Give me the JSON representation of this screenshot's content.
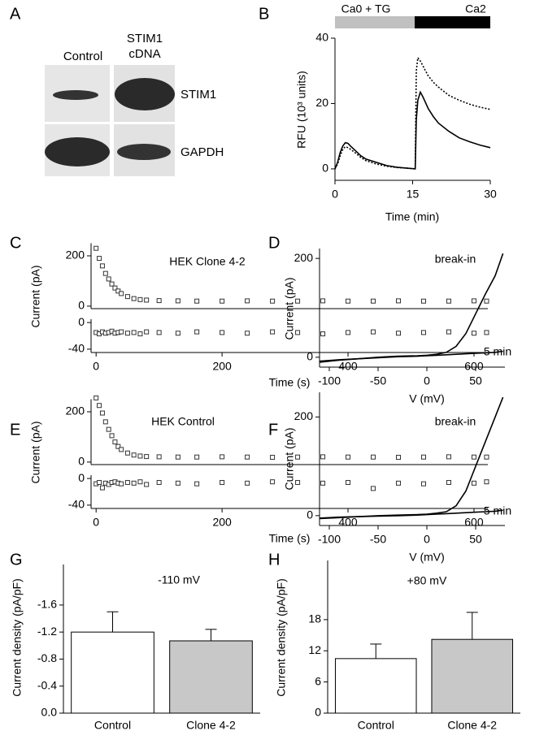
{
  "panel_labels": [
    "A",
    "B",
    "C",
    "D",
    "E",
    "F",
    "G",
    "H"
  ],
  "blot": {
    "columns": [
      "Control",
      "STIM1 cDNA"
    ],
    "rows": [
      "STIM1",
      "GAPDH"
    ]
  },
  "chart_data": [
    {
      "type": "line",
      "annotations": [
        "Ca0 + TG",
        "Ca2"
      ],
      "xlabel": "Time (min)",
      "ylabel": "RFU (10³ units)",
      "x": [
        0,
        0.5,
        1,
        1.5,
        2,
        2.5,
        3,
        4,
        5,
        6,
        8,
        10,
        12,
        14,
        15.5,
        15.7,
        16,
        16.5,
        17,
        18,
        19,
        20,
        22,
        24,
        26,
        28,
        30
      ],
      "series": [
        {
          "color": "#000000",
          "line_style": "solid",
          "values": [
            0,
            2,
            5,
            7,
            8,
            7.8,
            7,
            5.5,
            4,
            3,
            2,
            1,
            0.5,
            0.2,
            0,
            15,
            21,
            23.5,
            22,
            18.5,
            16,
            14,
            11.5,
            9.5,
            8.3,
            7.3,
            6.5
          ]
        },
        {
          "color": "#000000",
          "line_style": "dotted",
          "values": [
            0,
            1.5,
            4,
            6,
            6.8,
            6.5,
            6,
            4.8,
            3.5,
            2.5,
            1.5,
            0.8,
            0.4,
            0.2,
            0,
            30,
            34,
            33,
            31.5,
            28.5,
            26.5,
            25,
            22.5,
            21,
            19.8,
            18.9,
            18.2
          ]
        }
      ],
      "xlim": [
        0,
        30
      ],
      "xticks": [
        0,
        15,
        30
      ],
      "ylim": [
        -3.5,
        40
      ],
      "yticks": [
        0,
        20,
        40
      ]
    },
    {
      "type": "scatter",
      "title": "HEK Clone 4-2",
      "ylabel": "Current (pA)",
      "x": [
        0,
        5,
        10,
        15,
        20,
        25,
        30,
        35,
        40,
        50,
        60,
        70,
        80,
        100,
        130,
        160,
        200,
        240,
        280,
        320,
        360,
        400,
        440,
        480,
        520,
        560,
        600,
        620
      ],
      "values": [
        230,
        190,
        160,
        130,
        108,
        88,
        72,
        60,
        50,
        38,
        30,
        26,
        24,
        22,
        21,
        20,
        20,
        21,
        20,
        20,
        21,
        20,
        20,
        21,
        20,
        20,
        21,
        20
      ],
      "xlim": [
        -8,
        622
      ],
      "ylim": [
        -10,
        250
      ],
      "yticks": [
        0,
        200
      ]
    },
    {
      "type": "scatter",
      "xlabel": "Time (s)",
      "x": [
        0,
        5,
        10,
        15,
        20,
        25,
        30,
        35,
        40,
        50,
        60,
        70,
        80,
        100,
        130,
        160,
        200,
        240,
        280,
        320,
        360,
        400,
        440,
        480,
        520,
        560,
        600,
        620
      ],
      "values": [
        -15,
        -17,
        -14,
        -16,
        -15,
        -13,
        -16,
        -15,
        -14,
        -16,
        -15,
        -17,
        -14,
        -15,
        -16,
        -14,
        -15,
        -16,
        -14,
        -15,
        -17,
        -15,
        -14,
        -16,
        -15,
        -14,
        -16,
        -15
      ],
      "xlim": [
        -8,
        622
      ],
      "xticks": [
        0,
        200,
        400,
        600
      ],
      "ylim": [
        -45,
        5
      ],
      "yticks": [
        0,
        -40
      ]
    },
    {
      "type": "line",
      "xlabel": "V (mV)",
      "ylabel": "Current (pA)",
      "x": [
        -110,
        -90,
        -70,
        -50,
        -30,
        -10,
        0,
        10,
        20,
        30,
        40,
        50,
        60,
        70,
        78
      ],
      "series": [
        {
          "name": "break-in",
          "color": "#000000",
          "line_style": "solid",
          "values": [
            -10,
            -6,
            -3,
            0,
            2,
            3,
            4,
            6,
            10,
            22,
            48,
            88,
            128,
            165,
            210
          ]
        },
        {
          "name": "5 min",
          "color": "#000000",
          "line_style": "solid",
          "values": [
            -8,
            -5,
            -3,
            -1,
            1,
            2,
            3,
            4,
            5,
            6,
            7,
            8,
            9,
            10,
            12
          ]
        }
      ],
      "xlim": [
        -110,
        80
      ],
      "xticks": [
        -100,
        -50,
        0,
        50
      ],
      "ylim": [
        -20,
        220
      ],
      "yticks": [
        0,
        200
      ]
    },
    {
      "type": "scatter",
      "title": "HEK Control",
      "ylabel": "Current (pA)",
      "x": [
        0,
        5,
        10,
        15,
        20,
        25,
        30,
        35,
        40,
        50,
        60,
        70,
        80,
        100,
        130,
        160,
        200,
        240,
        280,
        320,
        360,
        400,
        440,
        480,
        520,
        560,
        600,
        620
      ],
      "values": [
        255,
        225,
        195,
        160,
        130,
        105,
        80,
        62,
        50,
        36,
        28,
        24,
        22,
        21,
        20,
        20,
        21,
        20,
        19,
        20,
        21,
        20,
        20,
        19,
        20,
        21,
        20,
        20
      ],
      "xlim": [
        -8,
        622
      ],
      "ylim": [
        -10,
        250
      ],
      "yticks": [
        0,
        200
      ]
    },
    {
      "type": "scatter",
      "xlabel": "Time (s)",
      "x": [
        0,
        5,
        10,
        15,
        20,
        25,
        30,
        35,
        40,
        50,
        60,
        70,
        80,
        100,
        130,
        160,
        200,
        240,
        280,
        320,
        360,
        400,
        440,
        480,
        520,
        560,
        600,
        620
      ],
      "values": [
        -8,
        -6,
        -14,
        -7,
        -9,
        -6,
        -5,
        -7,
        -8,
        -6,
        -7,
        -5,
        -9,
        -6,
        -7,
        -8,
        -6,
        -7,
        -5,
        -6,
        -7,
        -6,
        -15,
        -7,
        -8,
        -6,
        -7,
        -5
      ],
      "xlim": [
        -8,
        622
      ],
      "xticks": [
        0,
        200,
        400,
        600
      ],
      "ylim": [
        -45,
        5
      ],
      "yticks": [
        0,
        -40
      ]
    },
    {
      "type": "line",
      "xlabel": "V (mV)",
      "ylabel": "Current (pA)",
      "x": [
        -110,
        -90,
        -70,
        -50,
        -30,
        -10,
        0,
        10,
        20,
        30,
        40,
        50,
        60,
        70,
        78
      ],
      "series": [
        {
          "name": "break-in",
          "color": "#000000",
          "line_style": "solid",
          "values": [
            -6,
            -4,
            -2,
            0,
            1,
            2,
            3,
            5,
            8,
            20,
            50,
            100,
            150,
            200,
            240
          ]
        },
        {
          "name": "5 min",
          "color": "#000000",
          "line_style": "solid",
          "values": [
            -5,
            -3,
            -2,
            -1,
            0,
            1,
            2,
            3,
            4,
            5,
            6,
            7,
            8,
            9,
            11
          ]
        }
      ],
      "xlim": [
        -110,
        80
      ],
      "xticks": [
        -100,
        -50,
        0,
        50
      ],
      "ylim": [
        -20,
        250
      ],
      "yticks": [
        0,
        200
      ]
    },
    {
      "type": "bar",
      "annotations": [
        "-110 mV"
      ],
      "ylabel": "Current density (pA/pF)",
      "categories": [
        "Control",
        "Clone 4-2"
      ],
      "values": [
        -1.2,
        -1.07
      ],
      "errors": [
        0.3,
        0.17
      ],
      "colors": [
        "#ffffff",
        "#c8c8c8"
      ],
      "ylim": [
        0,
        -2.2
      ],
      "yticks": [
        {
          "value": 0,
          "label": "0.0"
        },
        -0.4,
        -0.8,
        -1.2,
        -1.6
      ]
    },
    {
      "type": "bar",
      "annotations": [
        "+80 mV"
      ],
      "ylabel": "Current density (pA/pF)",
      "categories": [
        "Control",
        "Clone 4-2"
      ],
      "values": [
        10.5,
        14.2
      ],
      "errors": [
        2.8,
        5.2
      ],
      "colors": [
        "#ffffff",
        "#c8c8c8"
      ],
      "ylim": [
        0,
        29.4
      ],
      "yticks": [
        0,
        6,
        12,
        18
      ]
    }
  ]
}
